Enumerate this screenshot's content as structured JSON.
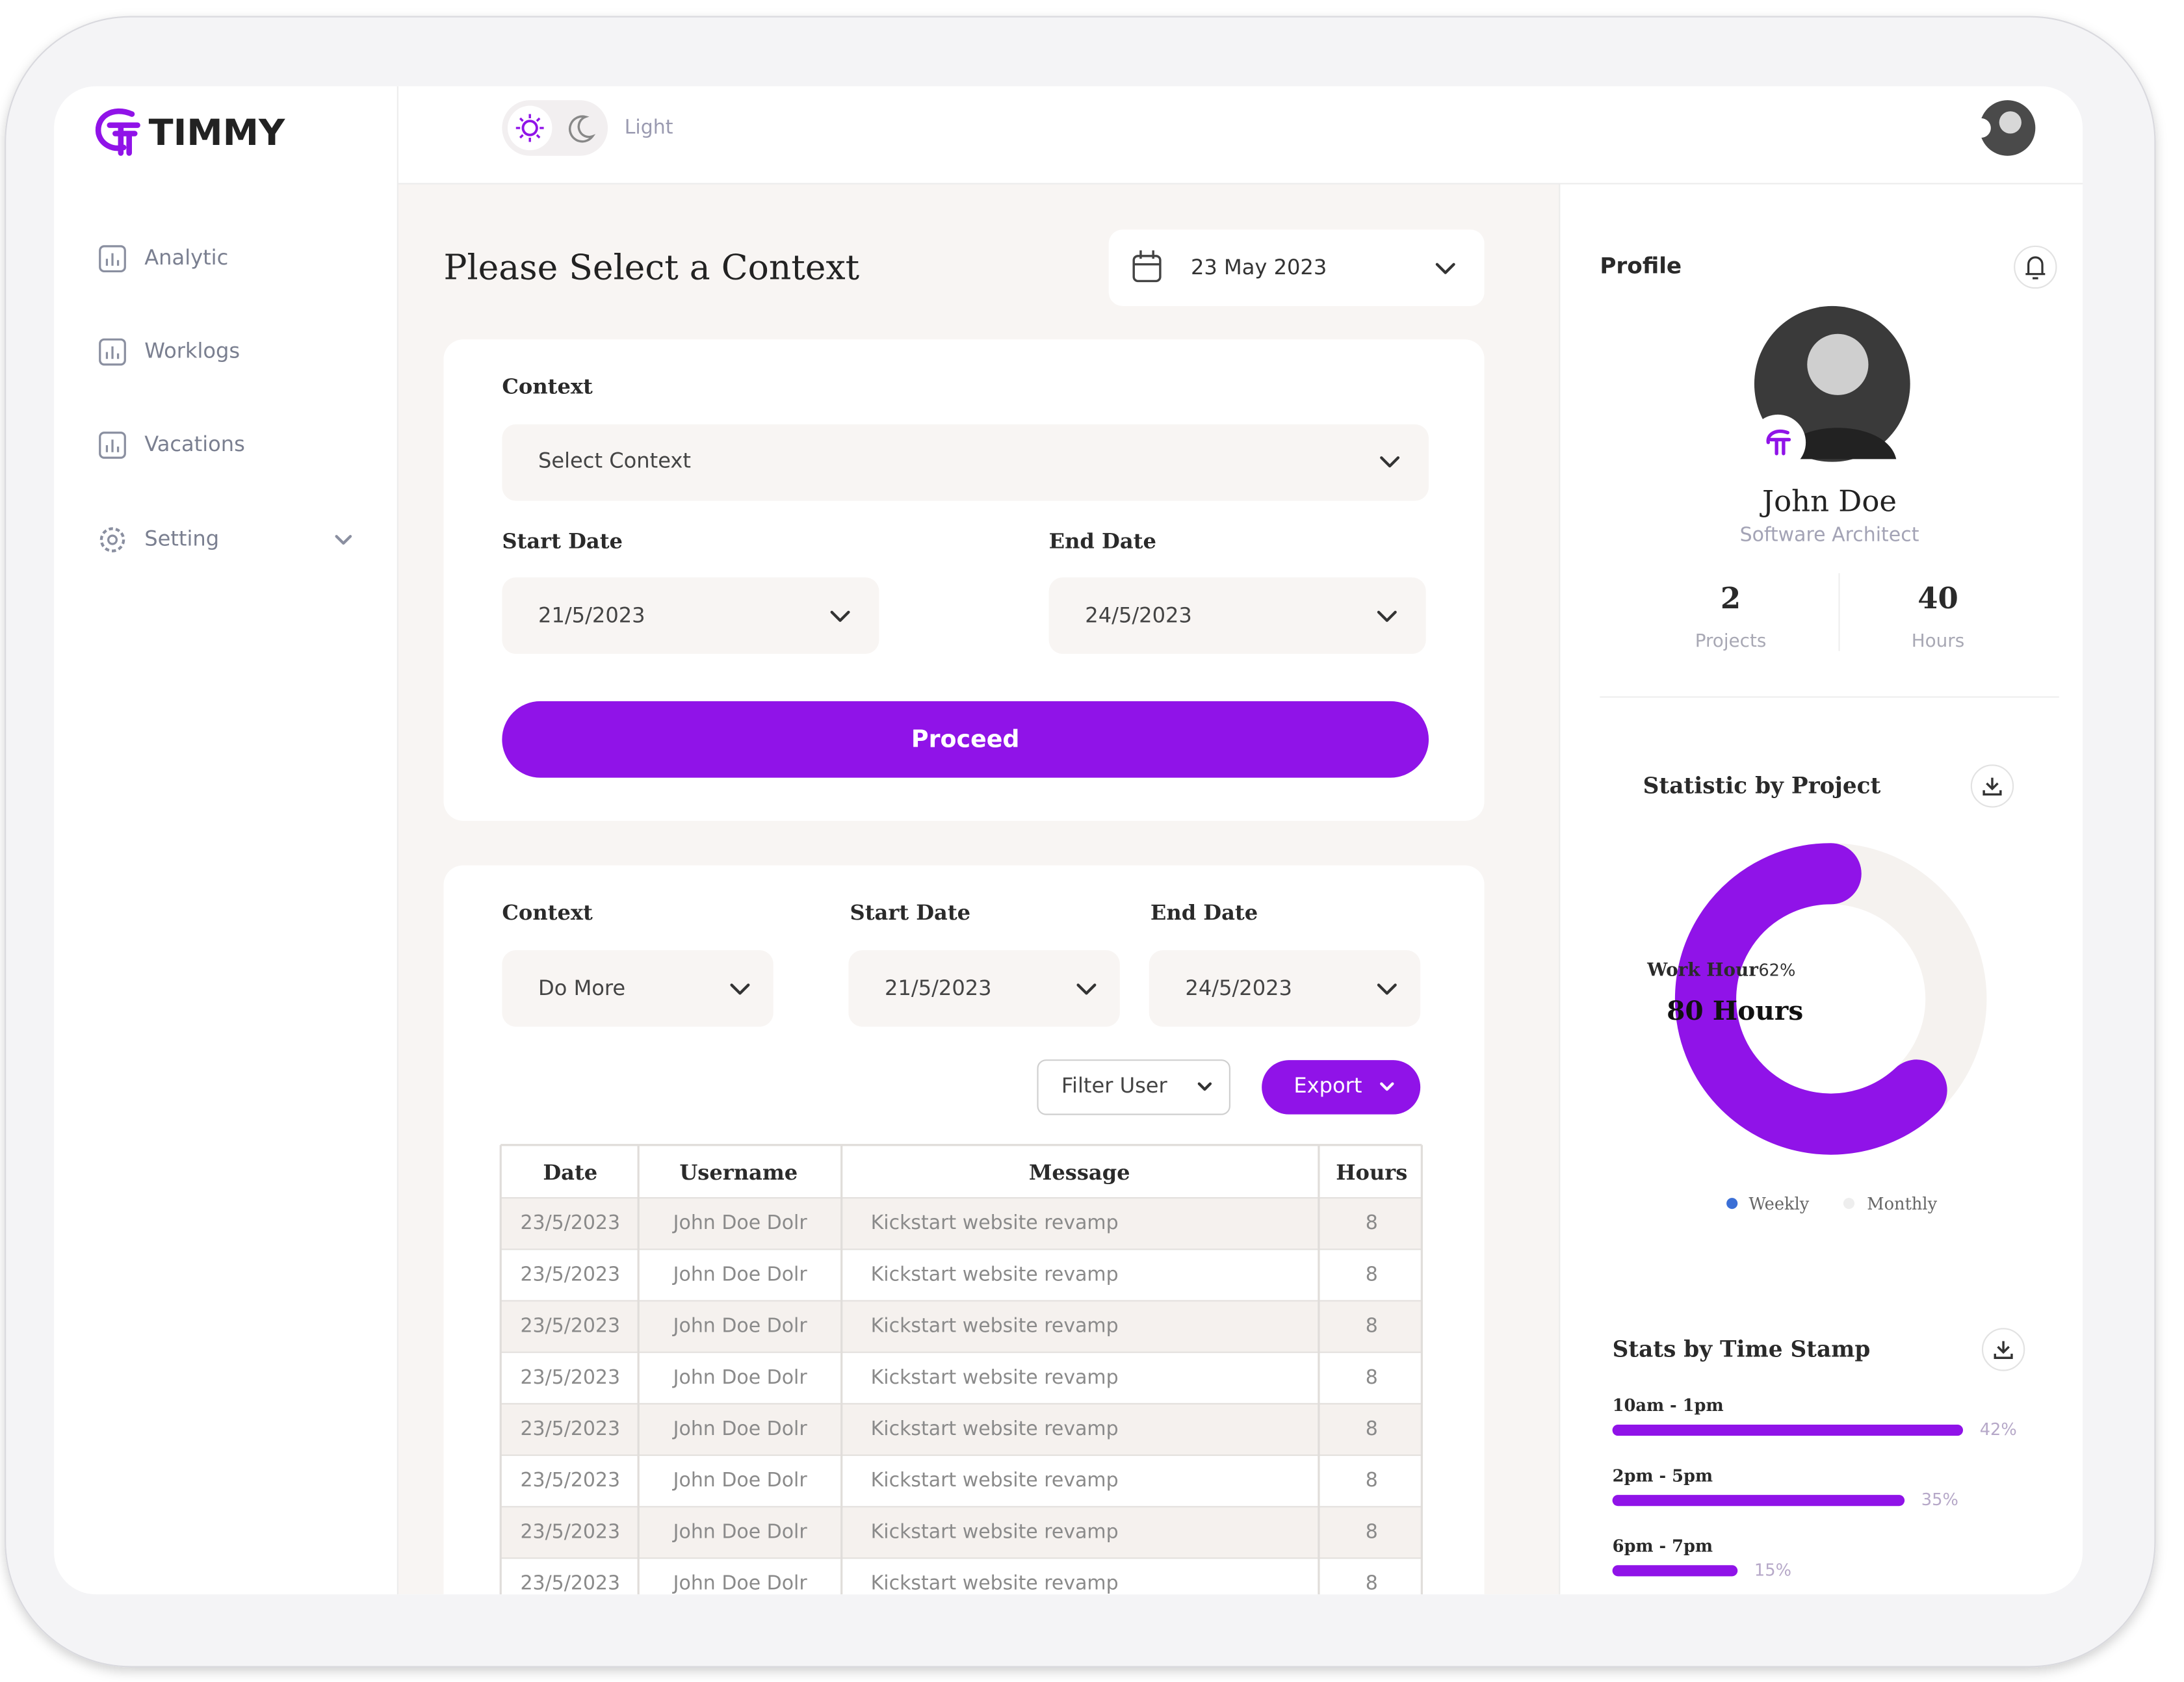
{
  "brand": "TIMMY",
  "nav": [
    "Analytic",
    "Worklogs",
    "Vacations",
    "Setting"
  ],
  "theme_label": "Light",
  "header": {
    "title": "Please Select a Context",
    "date": "23 May 2023"
  },
  "form": {
    "context_label": "Context",
    "context_placeholder": "Select Context",
    "start_label": "Start Date",
    "start_value": "21/5/2023",
    "end_label": "End Date",
    "end_value": "24/5/2023",
    "button": "Proceed"
  },
  "filters": {
    "context_label": "Context",
    "context_value": "Do More",
    "start_label": "Start Date",
    "start_value": "21/5/2023",
    "end_label": "End Date",
    "end_value": "24/5/2023",
    "filter_user": "Filter User",
    "export": "Export"
  },
  "table": {
    "columns": [
      "Date",
      "Username",
      "Message",
      "Hours"
    ],
    "rows": [
      [
        "23/5/2023",
        "John Doe Dolr",
        "Kickstart website revamp",
        8
      ],
      [
        "23/5/2023",
        "John Doe Dolr",
        "Kickstart website revamp",
        8
      ],
      [
        "23/5/2023",
        "John Doe Dolr",
        "Kickstart website revamp",
        8
      ],
      [
        "23/5/2023",
        "John Doe Dolr",
        "Kickstart website revamp",
        8
      ],
      [
        "23/5/2023",
        "John Doe Dolr",
        "Kickstart website revamp",
        8
      ],
      [
        "23/5/2023",
        "John Doe Dolr",
        "Kickstart website revamp",
        8
      ],
      [
        "23/5/2023",
        "John Doe Dolr",
        "Kickstart website revamp",
        8
      ],
      [
        "23/5/2023",
        "John Doe Dolr",
        "Kickstart website revamp",
        8
      ]
    ]
  },
  "profile": {
    "title": "Profile",
    "name": "John Doe",
    "role": "Software Architect",
    "stats": [
      {
        "value": 2,
        "label": "Projects"
      },
      {
        "value": 40,
        "label": "Hours"
      }
    ]
  },
  "project_stats": {
    "title": "Statistic by Project",
    "label": "Work Hour",
    "percent": 62,
    "percent_label": "62%",
    "total": "80 Hours",
    "legend": [
      "Weekly",
      "Monthly"
    ]
  },
  "time_stats": {
    "title": "Stats by Time Stamp",
    "items": [
      {
        "label": "10am - 1pm",
        "value": 42,
        "value_label": "42%"
      },
      {
        "label": "2pm - 5pm",
        "value": 35,
        "value_label": "35%"
      },
      {
        "label": "6pm - 7pm",
        "value": 15,
        "value_label": "15%"
      }
    ]
  }
}
